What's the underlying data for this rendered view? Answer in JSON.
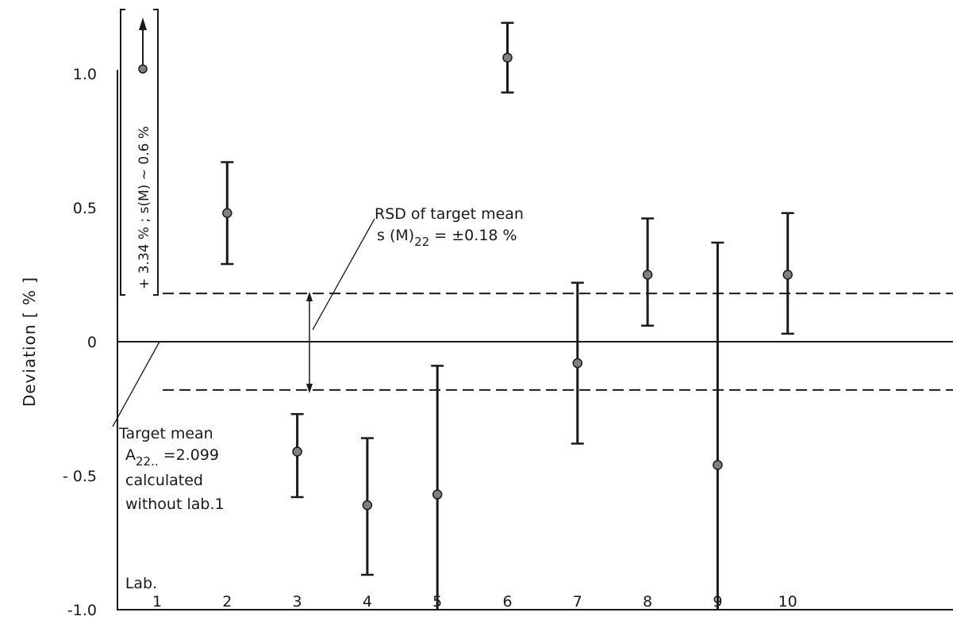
{
  "chart_data": {
    "type": "scatter",
    "title": "",
    "xlabel": "Lab.",
    "ylabel": "Deviation [ % ]",
    "ylim": [
      -1.0,
      1.2
    ],
    "yticks": [
      {
        "value": 1.0,
        "label": "1.0"
      },
      {
        "value": 0.5,
        "label": "0.5"
      },
      {
        "value": 0,
        "label": "0"
      },
      {
        "value": -0.5,
        "label": "- 0.5"
      },
      {
        "value": -1.0,
        "label": "-1.0"
      }
    ],
    "categories": [
      "1",
      "2",
      "3",
      "4",
      "5",
      "6",
      "7",
      "8",
      "9",
      "10"
    ],
    "points": [
      {
        "lab": "2",
        "value": 0.48,
        "low": 0.29,
        "high": 0.67
      },
      {
        "lab": "3",
        "value": -0.41,
        "low": -0.58,
        "high": -0.27
      },
      {
        "lab": "4",
        "value": -0.61,
        "low": -0.87,
        "high": -0.36
      },
      {
        "lab": "5",
        "value": -0.57,
        "low": -1.0,
        "high": -0.09
      },
      {
        "lab": "6",
        "value": 1.06,
        "low": 0.93,
        "high": 1.19
      },
      {
        "lab": "7",
        "value": -0.08,
        "low": -0.38,
        "high": 0.22
      },
      {
        "lab": "8",
        "value": 0.25,
        "low": 0.06,
        "high": 0.46
      },
      {
        "lab": "9",
        "value": -0.46,
        "low": -1.0,
        "high": 0.37
      },
      {
        "lab": "10",
        "value": 0.25,
        "low": 0.03,
        "high": 0.48
      }
    ],
    "reference_lines": [
      {
        "value": 0,
        "style": "solid",
        "meaning": "target mean"
      },
      {
        "value": 0.18,
        "style": "dashed"
      },
      {
        "value": -0.18,
        "style": "dashed"
      }
    ],
    "lab1_note": "+ 3.34 % ; s(M) ~ 0.6 %",
    "annotations": {
      "rsd_line1": "RSD of target mean",
      "rsd_line2_prefix": "s (M)",
      "rsd_line2_sub": "22",
      "rsd_line2_suffix": " = ±0.18 %",
      "target_line1": "Target mean",
      "target_line2_prefix": "A",
      "target_line2_sub": "22..",
      "target_line2_suffix": " =2.099",
      "target_line3": "calculated",
      "target_line4": "without  lab.1"
    }
  }
}
